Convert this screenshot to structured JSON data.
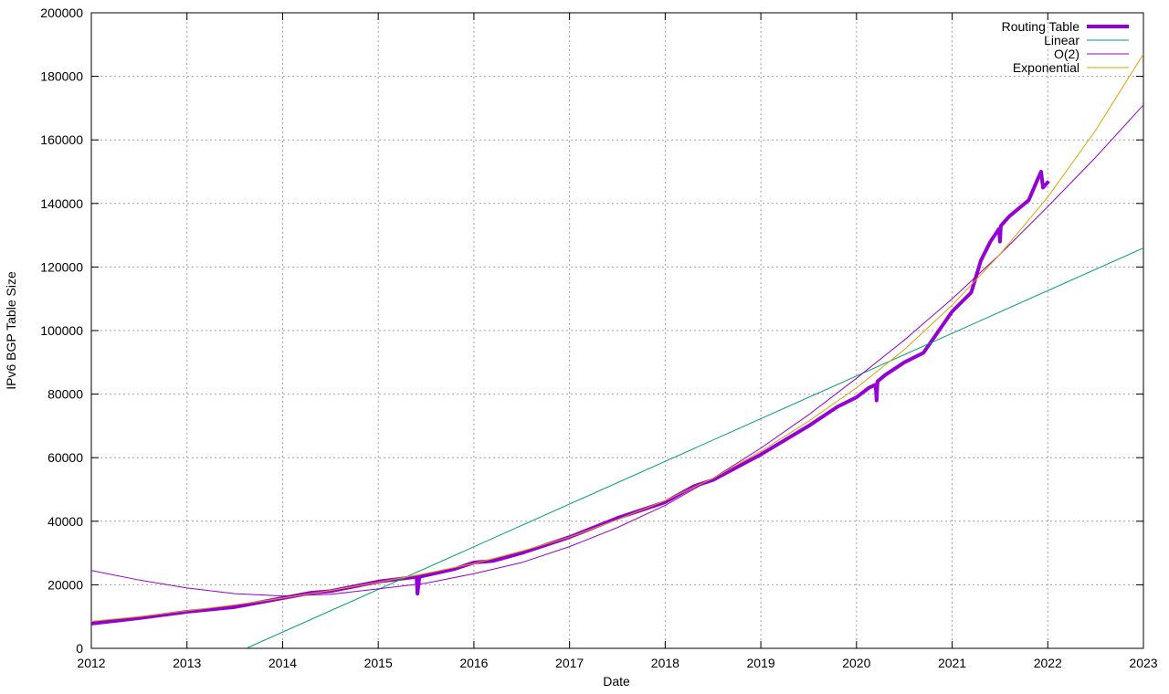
{
  "chart_data": {
    "type": "line",
    "xlabel": "Date",
    "ylabel": "IPv6 BGP Table Size",
    "xlim": [
      2012,
      2023
    ],
    "xticks": [
      2012,
      2013,
      2014,
      2015,
      2016,
      2017,
      2018,
      2019,
      2020,
      2021,
      2022,
      2023
    ],
    "ylim": [
      0,
      200000
    ],
    "yticks": [
      0,
      20000,
      40000,
      60000,
      80000,
      100000,
      120000,
      140000,
      160000,
      180000,
      200000
    ],
    "grid": true,
    "legend": "top-right",
    "series": [
      {
        "name": "Routing Table",
        "color": "#9400d3",
        "x": [
          2012.0,
          2012.5,
          2013.0,
          2013.5,
          2014.0,
          2014.3,
          2014.5,
          2015.0,
          2015.4,
          2015.41,
          2015.43,
          2015.8,
          2016.0,
          2016.2,
          2016.5,
          2017.0,
          2017.5,
          2018.0,
          2018.3,
          2018.5,
          2019.0,
          2019.5,
          2019.8,
          2020.0,
          2020.13,
          2020.2,
          2020.21,
          2020.22,
          2020.3,
          2020.5,
          2020.7,
          2021.0,
          2021.2,
          2021.3,
          2021.4,
          2021.49,
          2021.5,
          2021.51,
          2021.6,
          2021.8,
          2021.9,
          2021.93,
          2021.95,
          2022.01
        ],
        "values": [
          7800,
          9500,
          11500,
          13000,
          15800,
          17500,
          18000,
          21000,
          22500,
          17200,
          22500,
          25000,
          27000,
          27500,
          30000,
          35000,
          41000,
          46000,
          51000,
          53000,
          61000,
          70000,
          76000,
          79000,
          82000,
          83000,
          78000,
          84000,
          86000,
          90000,
          93000,
          106000,
          112000,
          122000,
          128000,
          132000,
          128000,
          133000,
          136000,
          141000,
          148000,
          150000,
          145000,
          147000
        ]
      },
      {
        "name": "Linear",
        "color": "#009e73",
        "x": [
          2013.62,
          2023
        ],
        "values": [
          0,
          126000
        ]
      },
      {
        "name": "O(2)",
        "color": "#9400d3",
        "x": [
          2012,
          2012.5,
          2013,
          2013.5,
          2014,
          2014.5,
          2015,
          2015.5,
          2016,
          2016.5,
          2017,
          2017.5,
          2018,
          2018.5,
          2019,
          2019.5,
          2020,
          2020.5,
          2021,
          2021.5,
          2022,
          2022.5,
          2023
        ],
        "values": [
          24500,
          21500,
          19000,
          17200,
          16500,
          17000,
          18700,
          20500,
          23500,
          27000,
          32000,
          38000,
          45000,
          53500,
          63000,
          73500,
          85000,
          97000,
          110000,
          124000,
          139000,
          154500,
          171000
        ]
      },
      {
        "name": "Exponential",
        "color": "#e6a000",
        "x": [
          2012,
          2012.5,
          2013,
          2013.5,
          2014,
          2014.5,
          2015,
          2015.5,
          2016,
          2016.5,
          2017,
          2017.5,
          2018,
          2018.5,
          2019,
          2019.5,
          2020,
          2020.5,
          2021,
          2021.5,
          2022,
          2022.5,
          2023
        ],
        "values": [
          8500,
          10000,
          11800,
          13700,
          15800,
          18200,
          20800,
          23600,
          26700,
          30600,
          35000,
          40500,
          46500,
          53500,
          62000,
          71500,
          82000,
          94000,
          108000,
          124000,
          142000,
          163000,
          187000
        ]
      }
    ]
  }
}
